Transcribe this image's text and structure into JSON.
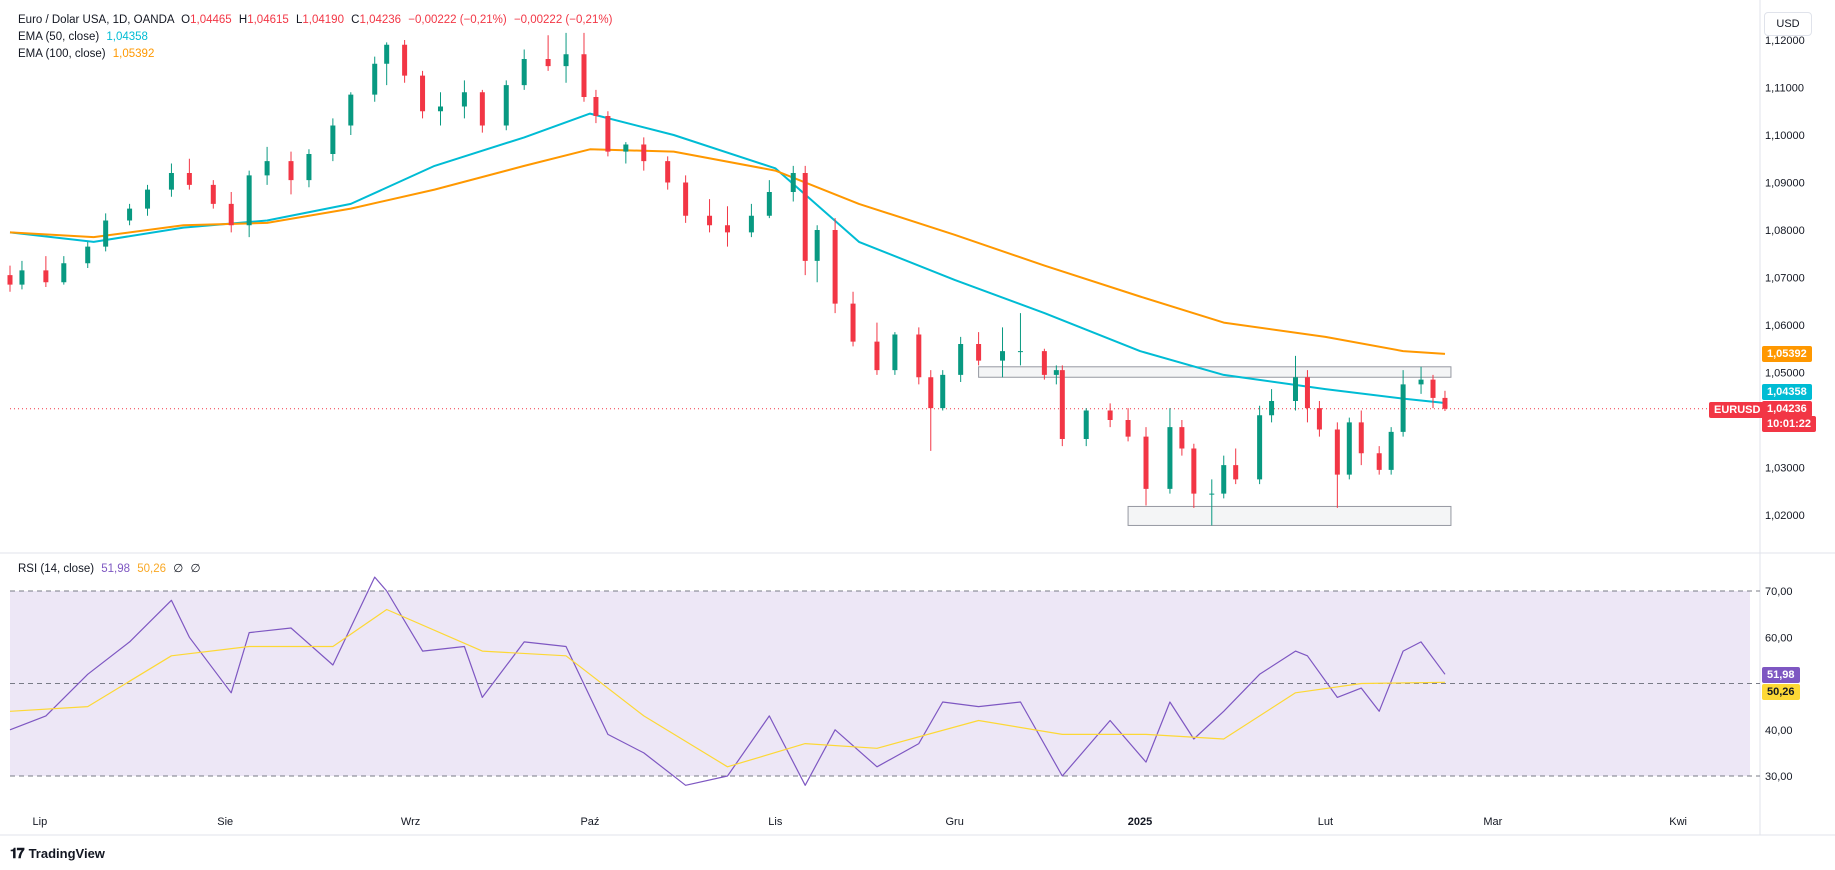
{
  "header": {
    "symbol": "Euro / Dolar USA, 1D, OANDA",
    "o_label": "O",
    "o": "1,04465",
    "h_label": "H",
    "h": "1,04615",
    "l_label": "L",
    "l": "1,04190",
    "c_label": "C",
    "c": "1,04236",
    "change": "−0,00222 (−0,21%)",
    "change2": "−0,00222 (−0,21%)",
    "ema50_label": "EMA (50, close)",
    "ema50": "1,04358",
    "ema100_label": "EMA (100, close)",
    "ema100": "1,05392",
    "rsi_label": "RSI (14, close)",
    "rsi": "51,98",
    "rsi_ma": "50,26",
    "rsi_x1": "∅",
    "rsi_x2": "∅"
  },
  "unit_button": "USD",
  "price_badges": {
    "ema100": "1,05392",
    "ema50": "1,04358",
    "symbol": "EURUSD",
    "last": "1,04236",
    "countdown": "10:01:22",
    "rsi": "51,98",
    "rsi_ma": "50,26"
  },
  "branding": "TradingView",
  "colors": {
    "up": "#089981",
    "down": "#f23645",
    "ema50": "#00bcd4",
    "ema100": "#ff9800",
    "rsi": "#7e57c2",
    "rsi_ma": "#fdd835",
    "rsi_band": "#ede7f6"
  },
  "chart_data": [
    {
      "type": "candlestick",
      "title": "Euro / Dolar USA, 1D, OANDA",
      "ylim": [
        1.0165,
        1.123
      ],
      "yticks": [
        "1,02000",
        "1,03000",
        "1,04000",
        "1,05000",
        "1,06000",
        "1,07000",
        "1,08000",
        "1,09000",
        "1,10000",
        "1,11000",
        "1,12000"
      ],
      "ytick_values": [
        1.02,
        1.03,
        1.04,
        1.05,
        1.06,
        1.07,
        1.08,
        1.09,
        1.1,
        1.11,
        1.12
      ],
      "xticks": [
        "Lip",
        "Sie",
        "Wrz",
        "Paź",
        "Lis",
        "Gru",
        "2025",
        "Lut",
        "Mar",
        "Kwi"
      ],
      "xtick_dates": [
        "2024-07-01",
        "2024-08-01",
        "2024-09-01",
        "2024-10-01",
        "2024-11-01",
        "2024-12-01",
        "2025-01-01",
        "2025-02-01",
        "2025-03-01",
        "2025-04-01"
      ],
      "last_price": 1.04236,
      "series": [
        {
          "name": "EMA (50, close)",
          "x": [
            "2024-06-26",
            "2024-07-10",
            "2024-07-25",
            "2024-08-08",
            "2024-08-22",
            "2024-09-05",
            "2024-09-20",
            "2024-10-01",
            "2024-10-15",
            "2024-11-01",
            "2024-11-15",
            "2024-12-01",
            "2024-12-16",
            "2025-01-01",
            "2025-01-15",
            "2025-02-01",
            "2025-02-14",
            "2025-02-21"
          ],
          "values": [
            1.0795,
            1.0775,
            1.0805,
            1.082,
            1.0855,
            1.0935,
            1.0995,
            1.1045,
            1.1,
            1.093,
            1.0775,
            1.0695,
            1.0625,
            1.0545,
            1.0495,
            1.0465,
            1.0445,
            1.04358
          ]
        },
        {
          "name": "EMA (100, close)",
          "x": [
            "2024-06-26",
            "2024-07-10",
            "2024-07-25",
            "2024-08-08",
            "2024-08-22",
            "2024-09-05",
            "2024-09-20",
            "2024-10-01",
            "2024-10-15",
            "2024-11-01",
            "2024-11-15",
            "2024-12-01",
            "2024-12-16",
            "2025-01-01",
            "2025-01-15",
            "2025-02-01",
            "2025-02-14",
            "2025-02-21"
          ],
          "values": [
            1.0795,
            1.0785,
            1.081,
            1.0815,
            1.0845,
            1.0885,
            1.0935,
            1.097,
            1.0965,
            1.0925,
            1.0855,
            1.079,
            1.0725,
            1.066,
            1.0605,
            1.0575,
            1.0545,
            1.05392
          ]
        }
      ],
      "zones": [
        {
          "x": [
            "2024-12-05",
            "2025-02-22"
          ],
          "y": [
            1.049,
            1.0512
          ]
        },
        {
          "x": [
            "2024-12-30",
            "2025-02-22"
          ],
          "y": [
            1.0178,
            1.0218
          ]
        }
      ],
      "candles": [
        {
          "d": "2024-06-26",
          "o": 1.0705,
          "h": 1.0725,
          "l": 1.067,
          "c": 1.0685
        },
        {
          "d": "2024-06-28",
          "o": 1.0685,
          "h": 1.0735,
          "l": 1.0675,
          "c": 1.0715
        },
        {
          "d": "2024-07-02",
          "o": 1.0715,
          "h": 1.0745,
          "l": 1.068,
          "c": 1.069
        },
        {
          "d": "2024-07-05",
          "o": 1.069,
          "h": 1.0745,
          "l": 1.0685,
          "c": 1.073
        },
        {
          "d": "2024-07-09",
          "o": 1.073,
          "h": 1.0775,
          "l": 1.072,
          "c": 1.0765
        },
        {
          "d": "2024-07-12",
          "o": 1.0765,
          "h": 1.0835,
          "l": 1.0755,
          "c": 1.082
        },
        {
          "d": "2024-07-16",
          "o": 1.082,
          "h": 1.0855,
          "l": 1.081,
          "c": 1.0845
        },
        {
          "d": "2024-07-19",
          "o": 1.0845,
          "h": 1.0895,
          "l": 1.083,
          "c": 1.0885
        },
        {
          "d": "2024-07-23",
          "o": 1.0885,
          "h": 1.094,
          "l": 1.087,
          "c": 1.092
        },
        {
          "d": "2024-07-26",
          "o": 1.092,
          "h": 1.095,
          "l": 1.0885,
          "c": 1.0895
        },
        {
          "d": "2024-07-30",
          "o": 1.0895,
          "h": 1.0905,
          "l": 1.0845,
          "c": 1.0855
        },
        {
          "d": "2024-08-02",
          "o": 1.0855,
          "h": 1.088,
          "l": 1.0795,
          "c": 1.081
        },
        {
          "d": "2024-08-05",
          "o": 1.081,
          "h": 1.0925,
          "l": 1.0785,
          "c": 1.0915
        },
        {
          "d": "2024-08-08",
          "o": 1.0915,
          "h": 1.0975,
          "l": 1.0895,
          "c": 1.0945
        },
        {
          "d": "2024-08-12",
          "o": 1.0945,
          "h": 1.0965,
          "l": 1.0875,
          "c": 1.0905
        },
        {
          "d": "2024-08-15",
          "o": 1.0905,
          "h": 1.097,
          "l": 1.089,
          "c": 1.096
        },
        {
          "d": "2024-08-19",
          "o": 1.096,
          "h": 1.1035,
          "l": 1.0945,
          "c": 1.102
        },
        {
          "d": "2024-08-22",
          "o": 1.102,
          "h": 1.109,
          "l": 1.1,
          "c": 1.1085
        },
        {
          "d": "2024-08-26",
          "o": 1.1085,
          "h": 1.1165,
          "l": 1.107,
          "c": 1.115
        },
        {
          "d": "2024-08-28",
          "o": 1.115,
          "h": 1.1195,
          "l": 1.1105,
          "c": 1.119
        },
        {
          "d": "2024-08-31",
          "o": 1.119,
          "h": 1.12,
          "l": 1.111,
          "c": 1.1125
        },
        {
          "d": "2024-09-03",
          "o": 1.1125,
          "h": 1.1135,
          "l": 1.1035,
          "c": 1.105
        },
        {
          "d": "2024-09-06",
          "o": 1.105,
          "h": 1.109,
          "l": 1.102,
          "c": 1.106
        },
        {
          "d": "2024-09-10",
          "o": 1.106,
          "h": 1.1115,
          "l": 1.1035,
          "c": 1.109
        },
        {
          "d": "2024-09-13",
          "o": 1.109,
          "h": 1.1095,
          "l": 1.1005,
          "c": 1.102
        },
        {
          "d": "2024-09-17",
          "o": 1.102,
          "h": 1.1115,
          "l": 1.101,
          "c": 1.1105
        },
        {
          "d": "2024-09-20",
          "o": 1.1105,
          "h": 1.118,
          "l": 1.1095,
          "c": 1.116
        },
        {
          "d": "2024-09-24",
          "o": 1.116,
          "h": 1.121,
          "l": 1.1135,
          "c": 1.1145
        },
        {
          "d": "2024-09-27",
          "o": 1.1145,
          "h": 1.1215,
          "l": 1.111,
          "c": 1.117
        },
        {
          "d": "2024-09-30",
          "o": 1.117,
          "h": 1.1215,
          "l": 1.107,
          "c": 1.108
        },
        {
          "d": "2024-10-02",
          "o": 1.108,
          "h": 1.1095,
          "l": 1.1025,
          "c": 1.104
        },
        {
          "d": "2024-10-04",
          "o": 1.104,
          "h": 1.105,
          "l": 1.0955,
          "c": 1.0965
        },
        {
          "d": "2024-10-07",
          "o": 1.0965,
          "h": 1.0985,
          "l": 1.094,
          "c": 1.098
        },
        {
          "d": "2024-10-10",
          "o": 1.098,
          "h": 1.0995,
          "l": 1.0925,
          "c": 1.0945
        },
        {
          "d": "2024-10-14",
          "o": 1.0945,
          "h": 1.0955,
          "l": 1.0885,
          "c": 1.09
        },
        {
          "d": "2024-10-17",
          "o": 1.09,
          "h": 1.0915,
          "l": 1.0815,
          "c": 1.083
        },
        {
          "d": "2024-10-21",
          "o": 1.083,
          "h": 1.0865,
          "l": 1.0795,
          "c": 1.081
        },
        {
          "d": "2024-10-24",
          "o": 1.081,
          "h": 1.085,
          "l": 1.0765,
          "c": 1.0795
        },
        {
          "d": "2024-10-28",
          "o": 1.0795,
          "h": 1.0855,
          "l": 1.0785,
          "c": 1.083
        },
        {
          "d": "2024-10-31",
          "o": 1.083,
          "h": 1.0905,
          "l": 1.0825,
          "c": 1.088
        },
        {
          "d": "2024-11-04",
          "o": 1.088,
          "h": 1.0935,
          "l": 1.086,
          "c": 1.092
        },
        {
          "d": "2024-11-06",
          "o": 1.092,
          "h": 1.0935,
          "l": 1.0705,
          "c": 1.0735
        },
        {
          "d": "2024-11-08",
          "o": 1.0735,
          "h": 1.081,
          "l": 1.069,
          "c": 1.08
        },
        {
          "d": "2024-11-11",
          "o": 1.08,
          "h": 1.0825,
          "l": 1.0625,
          "c": 1.0645
        },
        {
          "d": "2024-11-14",
          "o": 1.0645,
          "h": 1.067,
          "l": 1.0555,
          "c": 1.0565
        },
        {
          "d": "2024-11-18",
          "o": 1.0565,
          "h": 1.0605,
          "l": 1.0495,
          "c": 1.0505
        },
        {
          "d": "2024-11-21",
          "o": 1.0505,
          "h": 1.0585,
          "l": 1.0495,
          "c": 1.058
        },
        {
          "d": "2024-11-25",
          "o": 1.058,
          "h": 1.0595,
          "l": 1.0475,
          "c": 1.049
        },
        {
          "d": "2024-11-27",
          "o": 1.049,
          "h": 1.0505,
          "l": 1.0335,
          "c": 1.0425
        },
        {
          "d": "2024-11-29",
          "o": 1.0425,
          "h": 1.0505,
          "l": 1.042,
          "c": 1.0495
        },
        {
          "d": "2024-12-02",
          "o": 1.0495,
          "h": 1.0575,
          "l": 1.048,
          "c": 1.056
        },
        {
          "d": "2024-12-05",
          "o": 1.056,
          "h": 1.0585,
          "l": 1.0515,
          "c": 1.0525
        },
        {
          "d": "2024-12-09",
          "o": 1.0525,
          "h": 1.0595,
          "l": 1.049,
          "c": 1.0545
        },
        {
          "d": "2024-12-12",
          "o": 1.0545,
          "h": 1.0625,
          "l": 1.0515,
          "c": 1.0545
        },
        {
          "d": "2024-12-16",
          "o": 1.0545,
          "h": 1.055,
          "l": 1.0485,
          "c": 1.0495
        },
        {
          "d": "2024-12-18",
          "o": 1.0495,
          "h": 1.0515,
          "l": 1.0475,
          "c": 1.0505
        },
        {
          "d": "2024-12-19",
          "o": 1.0505,
          "h": 1.0515,
          "l": 1.0345,
          "c": 1.036
        },
        {
          "d": "2024-12-23",
          "o": 1.036,
          "h": 1.0425,
          "l": 1.0345,
          "c": 1.042
        },
        {
          "d": "2024-12-27",
          "o": 1.042,
          "h": 1.0435,
          "l": 1.0385,
          "c": 1.04
        },
        {
          "d": "2024-12-30",
          "o": 1.04,
          "h": 1.0425,
          "l": 1.0355,
          "c": 1.0365
        },
        {
          "d": "2025-01-02",
          "o": 1.0365,
          "h": 1.0385,
          "l": 1.022,
          "c": 1.0255
        },
        {
          "d": "2025-01-06",
          "o": 1.0255,
          "h": 1.0425,
          "l": 1.0245,
          "c": 1.0385
        },
        {
          "d": "2025-01-08",
          "o": 1.0385,
          "h": 1.04,
          "l": 1.0325,
          "c": 1.034
        },
        {
          "d": "2025-01-10",
          "o": 1.034,
          "h": 1.035,
          "l": 1.0215,
          "c": 1.0245
        },
        {
          "d": "2025-01-13",
          "o": 1.0245,
          "h": 1.0275,
          "l": 1.0178,
          "c": 1.0245
        },
        {
          "d": "2025-01-15",
          "o": 1.0245,
          "h": 1.0325,
          "l": 1.0235,
          "c": 1.0305
        },
        {
          "d": "2025-01-17",
          "o": 1.0305,
          "h": 1.034,
          "l": 1.0265,
          "c": 1.0275
        },
        {
          "d": "2025-01-21",
          "o": 1.0275,
          "h": 1.043,
          "l": 1.0265,
          "c": 1.041
        },
        {
          "d": "2025-01-23",
          "o": 1.041,
          "h": 1.0465,
          "l": 1.0395,
          "c": 1.044
        },
        {
          "d": "2025-01-27",
          "o": 1.044,
          "h": 1.0535,
          "l": 1.042,
          "c": 1.049
        },
        {
          "d": "2025-01-29",
          "o": 1.049,
          "h": 1.0505,
          "l": 1.0395,
          "c": 1.0425
        },
        {
          "d": "2025-01-31",
          "o": 1.0425,
          "h": 1.044,
          "l": 1.0365,
          "c": 1.038
        },
        {
          "d": "2025-02-03",
          "o": 1.038,
          "h": 1.0395,
          "l": 1.0215,
          "c": 1.0285
        },
        {
          "d": "2025-02-05",
          "o": 1.0285,
          "h": 1.0405,
          "l": 1.0275,
          "c": 1.0395
        },
        {
          "d": "2025-02-07",
          "o": 1.0395,
          "h": 1.042,
          "l": 1.0305,
          "c": 1.033
        },
        {
          "d": "2025-02-10",
          "o": 1.033,
          "h": 1.0345,
          "l": 1.0285,
          "c": 1.0295
        },
        {
          "d": "2025-02-12",
          "o": 1.0295,
          "h": 1.0385,
          "l": 1.0285,
          "c": 1.0375
        },
        {
          "d": "2025-02-14",
          "o": 1.0375,
          "h": 1.0505,
          "l": 1.0365,
          "c": 1.0475
        },
        {
          "d": "2025-02-17",
          "o": 1.0475,
          "h": 1.0512,
          "l": 1.0455,
          "c": 1.0485
        },
        {
          "d": "2025-02-19",
          "o": 1.0485,
          "h": 1.0495,
          "l": 1.0425,
          "c": 1.04465
        },
        {
          "d": "2025-02-21",
          "o": 1.04465,
          "h": 1.04615,
          "l": 1.0419,
          "c": 1.04236
        }
      ]
    },
    {
      "type": "line",
      "title": "RSI (14, close)",
      "ylim": [
        25,
        72
      ],
      "yticks": [
        "30,00",
        "40,00",
        "50,00",
        "60,00",
        "70,00"
      ],
      "ytick_values": [
        30,
        40,
        50,
        60,
        70
      ],
      "bands": [
        30,
        50,
        70
      ],
      "series": [
        {
          "name": "RSI",
          "x": [
            "2024-06-26",
            "2024-07-02",
            "2024-07-09",
            "2024-07-16",
            "2024-07-23",
            "2024-07-26",
            "2024-08-02",
            "2024-08-05",
            "2024-08-12",
            "2024-08-19",
            "2024-08-26",
            "2024-08-28",
            "2024-09-03",
            "2024-09-10",
            "2024-09-13",
            "2024-09-20",
            "2024-09-27",
            "2024-10-04",
            "2024-10-10",
            "2024-10-17",
            "2024-10-24",
            "2024-10-31",
            "2024-11-06",
            "2024-11-11",
            "2024-11-18",
            "2024-11-25",
            "2024-11-29",
            "2024-12-05",
            "2024-12-12",
            "2024-12-19",
            "2024-12-27",
            "2025-01-02",
            "2025-01-06",
            "2025-01-10",
            "2025-01-15",
            "2025-01-21",
            "2025-01-27",
            "2025-01-29",
            "2025-02-03",
            "2025-02-07",
            "2025-02-10",
            "2025-02-14",
            "2025-02-17",
            "2025-02-21"
          ],
          "values": [
            40,
            43,
            52,
            59,
            68,
            60,
            48,
            61,
            62,
            54,
            73,
            70,
            57,
            58,
            47,
            59,
            58,
            39,
            35,
            28,
            30,
            43,
            28,
            40,
            32,
            37,
            46,
            45,
            46,
            30,
            42,
            33,
            46,
            38,
            44,
            52,
            57,
            56,
            47,
            49,
            44,
            57,
            59,
            51.98
          ]
        },
        {
          "name": "RSI-based MA",
          "x": [
            "2024-06-26",
            "2024-07-09",
            "2024-07-23",
            "2024-08-05",
            "2024-08-19",
            "2024-08-28",
            "2024-09-13",
            "2024-09-27",
            "2024-10-10",
            "2024-10-24",
            "2024-11-06",
            "2024-11-18",
            "2024-12-05",
            "2024-12-19",
            "2025-01-02",
            "2025-01-15",
            "2025-01-27",
            "2025-02-07",
            "2025-02-21"
          ],
          "values": [
            44,
            45,
            56,
            58,
            58,
            66,
            57,
            56,
            43,
            32,
            37,
            36,
            42,
            39,
            39,
            38,
            48,
            50,
            50.26
          ]
        }
      ]
    }
  ]
}
